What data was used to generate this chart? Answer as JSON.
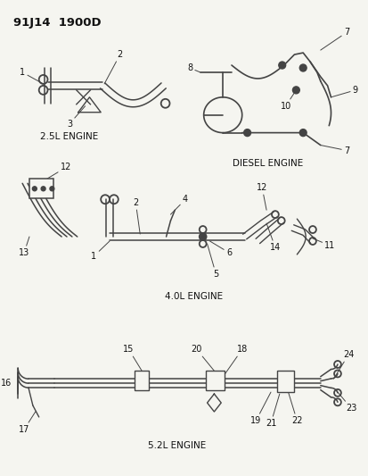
{
  "header": "91J14  1900D",
  "background": "#f5f5f0",
  "line_color": "#444444",
  "text_color": "#111111",
  "label_25L": "2.5L ENGINE",
  "label_diesel": "DIESEL ENGINE",
  "label_40L": "4.0L ENGINE",
  "label_52L": "5.2L ENGINE"
}
